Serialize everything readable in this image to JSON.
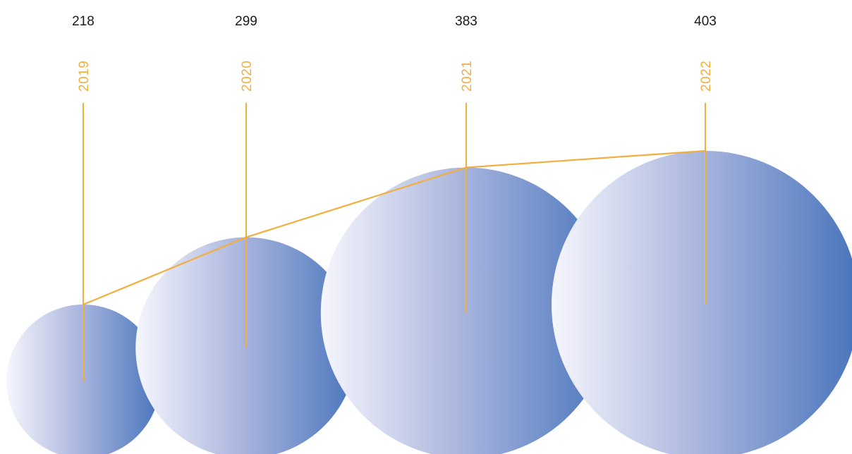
{
  "chart_data": {
    "type": "bubble",
    "title": "",
    "xlabel": "",
    "ylabel": "",
    "categories": [
      "2019",
      "2020",
      "2021",
      "2022"
    ],
    "values": [
      218,
      299,
      383,
      403
    ],
    "value_labels": [
      "218",
      "299",
      "383",
      "403"
    ],
    "legend": "none",
    "grid": false
  },
  "colors": {
    "accent": "#F2AE3F",
    "bubble_light": "#F6F6FC",
    "bubble_mid": "#AEB9DF",
    "bubble_dark": "#4874BC",
    "value_text": "#1A1A1A"
  }
}
